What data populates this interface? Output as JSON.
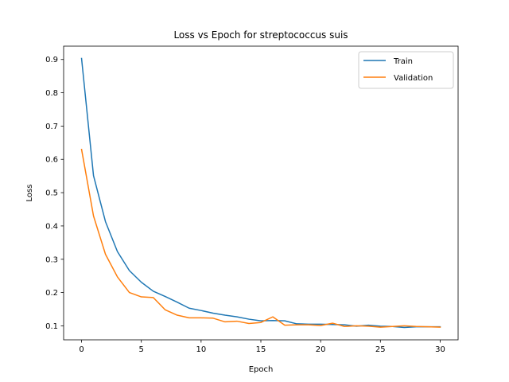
{
  "chart_data": {
    "type": "line",
    "title": "Loss vs Epoch for streptococcus suis",
    "xlabel": "Epoch",
    "ylabel": "Loss",
    "xlim": [
      -1.5,
      31.5
    ],
    "ylim": [
      0.058,
      0.94
    ],
    "xticks": [
      0,
      5,
      10,
      15,
      20,
      25,
      30
    ],
    "yticks": [
      0.1,
      0.2,
      0.3,
      0.4,
      0.5,
      0.6,
      0.7,
      0.8,
      0.9
    ],
    "grid": false,
    "legend_position": "top-right",
    "x": [
      0,
      1,
      2,
      3,
      4,
      5,
      6,
      7,
      8,
      9,
      10,
      11,
      12,
      13,
      14,
      15,
      16,
      17,
      18,
      19,
      20,
      21,
      22,
      23,
      24,
      25,
      26,
      27,
      28,
      29,
      30
    ],
    "series": [
      {
        "name": "Train",
        "color": "#1f77b4",
        "values": [
          0.903,
          0.551,
          0.413,
          0.323,
          0.266,
          0.231,
          0.204,
          0.188,
          0.171,
          0.153,
          0.146,
          0.138,
          0.132,
          0.127,
          0.12,
          0.115,
          0.116,
          0.115,
          0.106,
          0.105,
          0.105,
          0.104,
          0.103,
          0.099,
          0.102,
          0.099,
          0.098,
          0.095,
          0.097,
          0.097,
          0.097
        ]
      },
      {
        "name": "Validation",
        "color": "#ff7f0e",
        "values": [
          0.63,
          0.43,
          0.315,
          0.247,
          0.2,
          0.187,
          0.185,
          0.148,
          0.132,
          0.124,
          0.124,
          0.123,
          0.112,
          0.114,
          0.107,
          0.11,
          0.127,
          0.102,
          0.103,
          0.103,
          0.101,
          0.108,
          0.098,
          0.1,
          0.099,
          0.096,
          0.098,
          0.1,
          0.098,
          0.097,
          0.096
        ]
      }
    ]
  }
}
